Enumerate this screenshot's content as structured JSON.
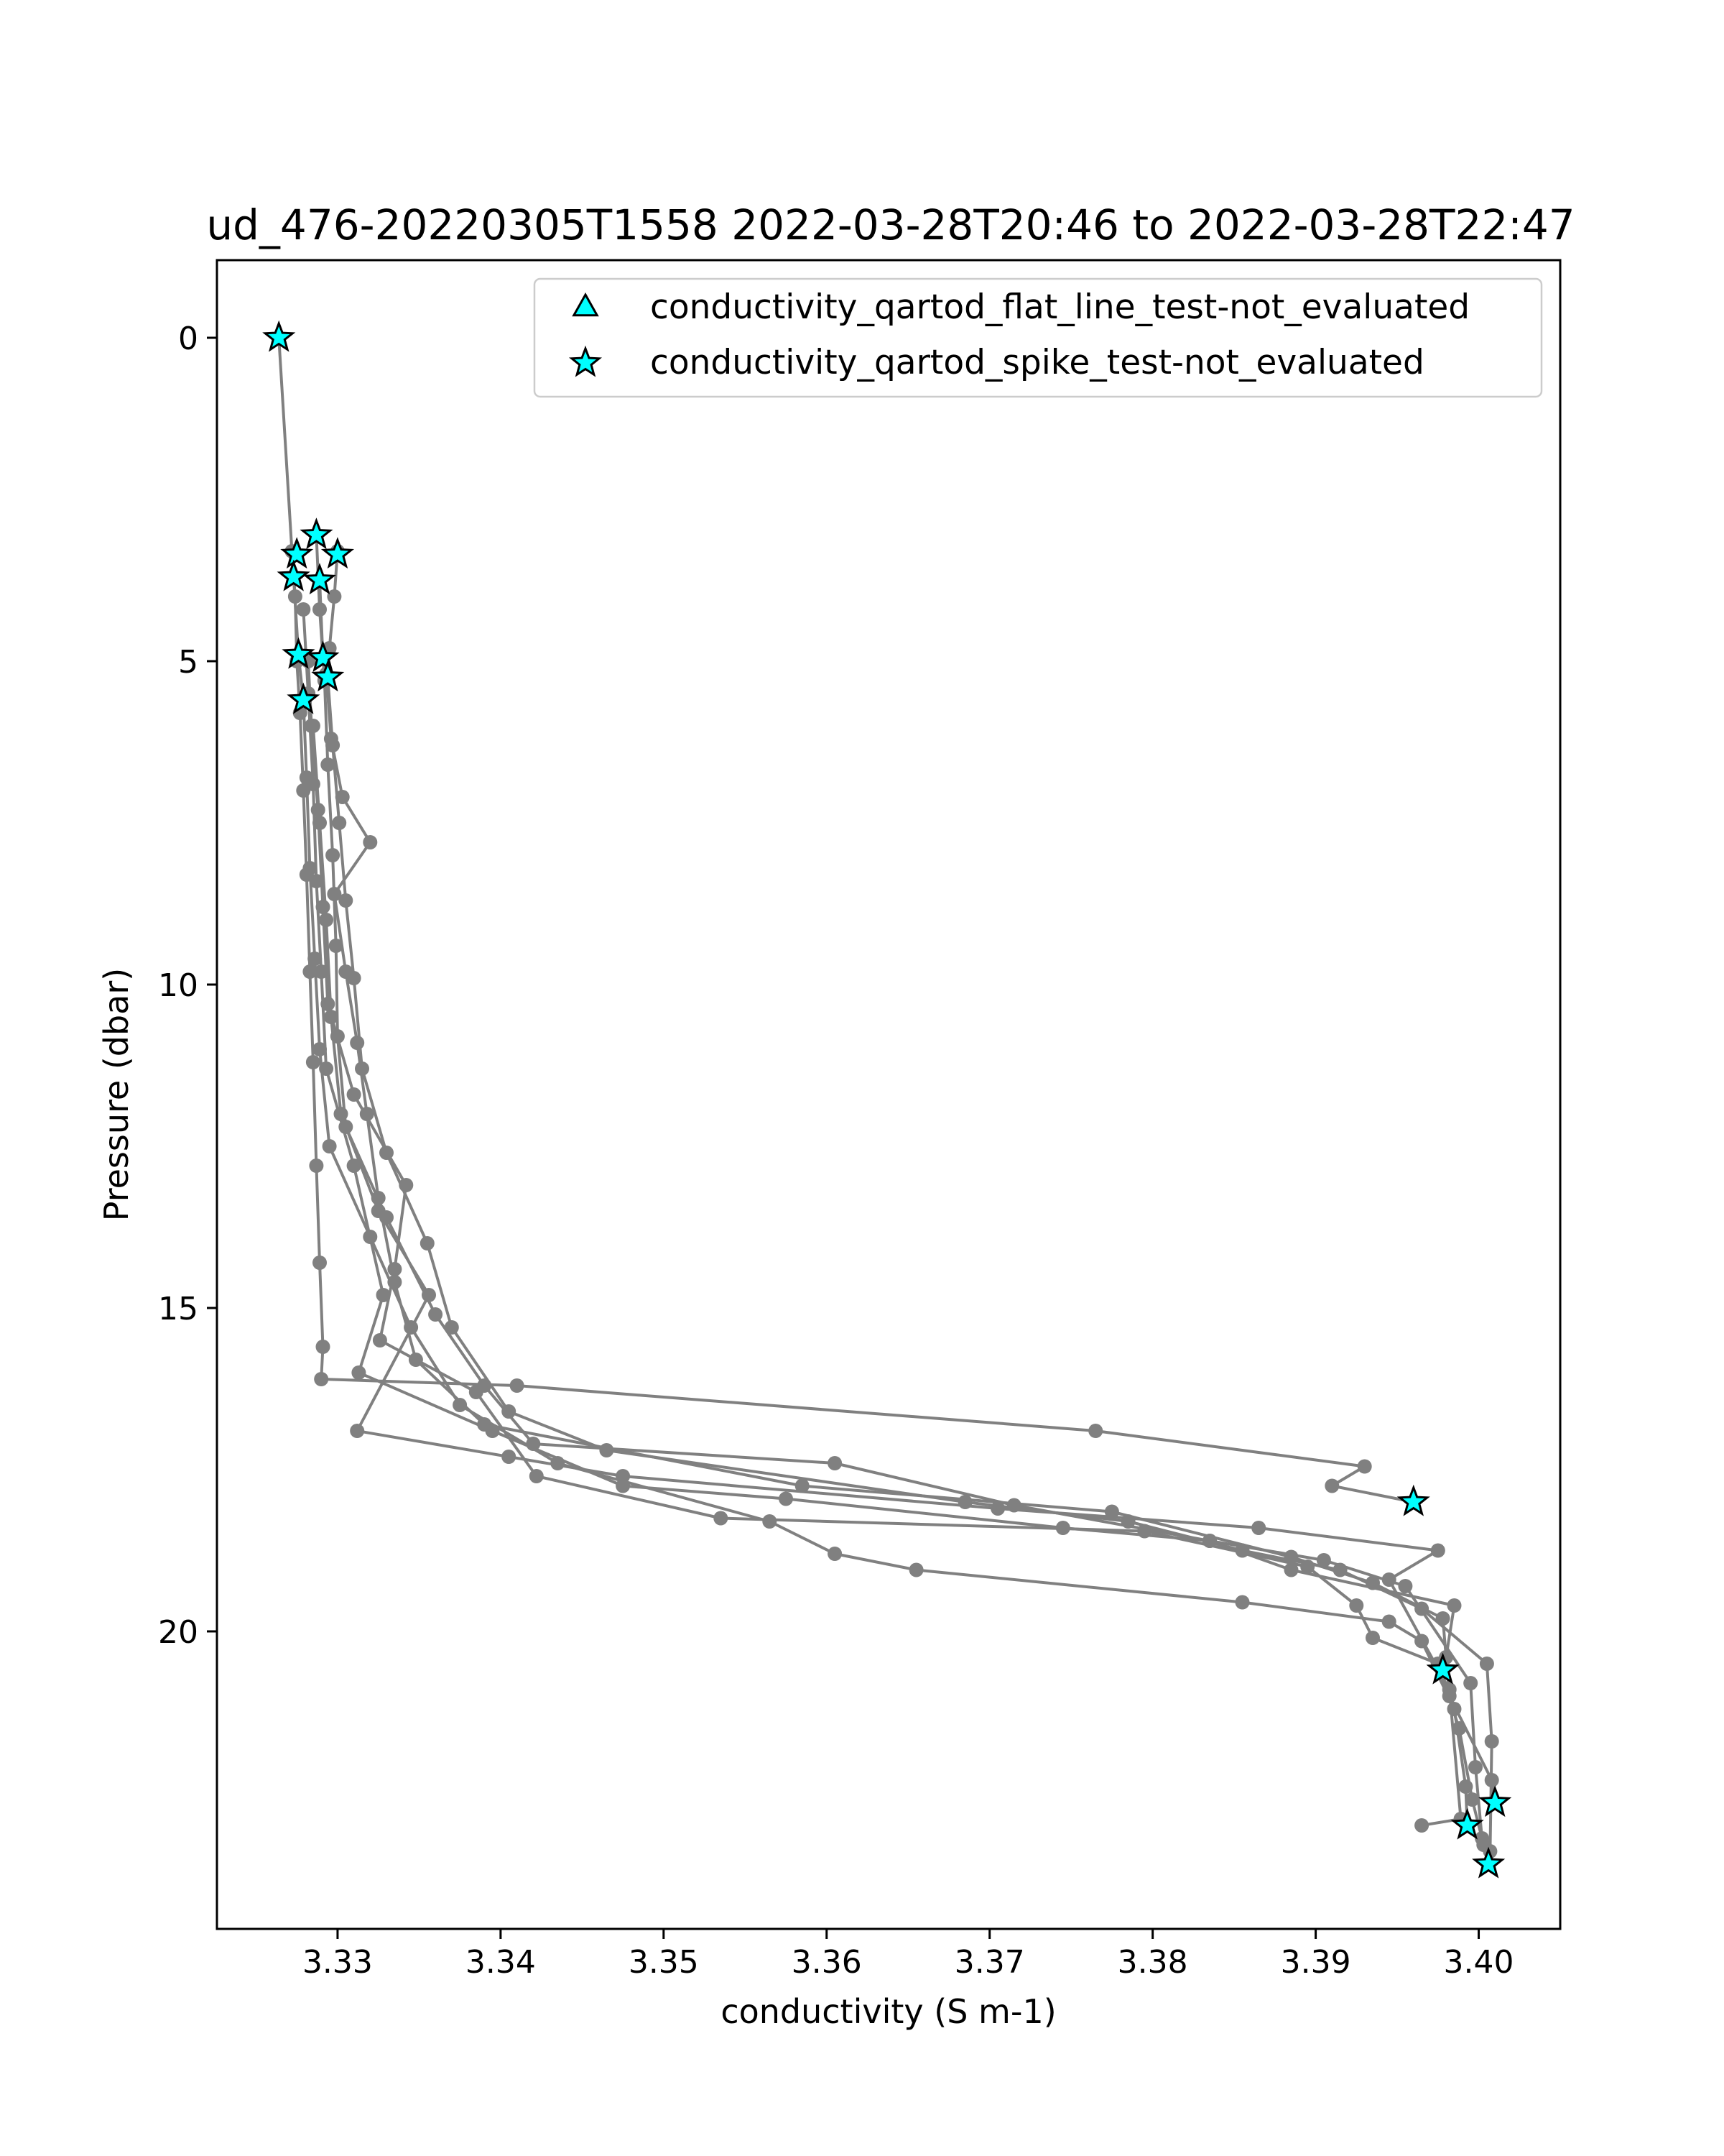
{
  "chart_data": {
    "type": "scatter",
    "title": "ud_476-20220305T1558 2022-03-28T20:46 to 2022-03-28T22:47",
    "xlabel": "conductivity (S m-1)",
    "ylabel": "Pressure (dbar)",
    "xlim": [
      3.3226,
      3.405
    ],
    "ylim": [
      24.6,
      -1.2
    ],
    "y_inverted": true,
    "grid": false,
    "legend_position": "upper-right",
    "x_ticks": [
      {
        "value": 3.33,
        "label": "3.33"
      },
      {
        "value": 3.34,
        "label": "3.34"
      },
      {
        "value": 3.35,
        "label": "3.35"
      },
      {
        "value": 3.36,
        "label": "3.36"
      },
      {
        "value": 3.37,
        "label": "3.37"
      },
      {
        "value": 3.38,
        "label": "3.38"
      },
      {
        "value": 3.39,
        "label": "3.39"
      },
      {
        "value": 3.4,
        "label": "3.40"
      }
    ],
    "y_ticks": [
      {
        "value": 0,
        "label": "0"
      },
      {
        "value": 5,
        "label": "5"
      },
      {
        "value": 10,
        "label": "10"
      },
      {
        "value": 15,
        "label": "15"
      },
      {
        "value": 20,
        "label": "20"
      }
    ],
    "profile_color": "#808080",
    "marker_fill": "#00ffff",
    "marker_edge": "#000000",
    "profiles": [
      {
        "points": [
          [
            3.3264,
            0.0
          ],
          [
            3.3272,
            3.3
          ],
          [
            3.3274,
            4.0
          ],
          [
            3.3275,
            5.0
          ],
          [
            3.3277,
            5.8
          ],
          [
            3.3279,
            7.0
          ],
          [
            3.3281,
            8.3
          ],
          [
            3.3283,
            9.8
          ],
          [
            3.3285,
            11.2
          ],
          [
            3.3287,
            12.8
          ],
          [
            3.3289,
            14.3
          ],
          [
            3.3291,
            15.6
          ],
          [
            3.329,
            16.1
          ],
          [
            3.341,
            16.2
          ],
          [
            3.3765,
            16.9
          ],
          [
            3.393,
            17.45
          ],
          [
            3.391,
            17.75
          ],
          [
            3.396,
            18.0
          ]
        ]
      },
      {
        "points": [
          [
            3.3287,
            3.05
          ],
          [
            3.3289,
            4.2
          ],
          [
            3.3292,
            5.3
          ],
          [
            3.3294,
            6.6
          ],
          [
            3.3297,
            8.0
          ],
          [
            3.3299,
            9.4
          ],
          [
            3.33,
            10.8
          ],
          [
            3.3305,
            12.2
          ],
          [
            3.333,
            13.6
          ],
          [
            3.336,
            15.1
          ],
          [
            3.339,
            16.2
          ],
          [
            3.342,
            17.1
          ],
          [
            3.3605,
            17.4
          ],
          [
            3.3715,
            18.05
          ],
          [
            3.3835,
            18.6
          ],
          [
            3.3885,
            19.05
          ],
          [
            3.3985,
            19.6
          ],
          [
            3.398,
            20.4
          ],
          [
            3.3978,
            20.6
          ]
        ]
      },
      {
        "points": [
          [
            3.33,
            3.3
          ],
          [
            3.3298,
            4.0
          ],
          [
            3.3295,
            4.8
          ],
          [
            3.3293,
            5.2
          ],
          [
            3.3296,
            6.2
          ],
          [
            3.3303,
            7.1
          ],
          [
            3.332,
            7.8
          ],
          [
            3.3298,
            8.6
          ],
          [
            3.3305,
            9.8
          ],
          [
            3.3312,
            10.9
          ],
          [
            3.3318,
            12.0
          ],
          [
            3.3325,
            13.3
          ],
          [
            3.3335,
            14.6
          ],
          [
            3.3348,
            15.8
          ],
          [
            3.339,
            16.8
          ],
          [
            3.3585,
            17.75
          ],
          [
            3.3775,
            18.15
          ],
          [
            3.3885,
            18.85
          ],
          [
            3.3935,
            19.25
          ],
          [
            3.3978,
            19.8
          ],
          [
            3.3982,
            21.0
          ],
          [
            3.4008,
            22.3
          ],
          [
            3.401,
            22.65
          ]
        ]
      },
      {
        "points": [
          [
            3.3273,
            3.7
          ],
          [
            3.3276,
            4.9
          ],
          [
            3.3279,
            5.6
          ],
          [
            3.3281,
            6.8
          ],
          [
            3.3283,
            8.2
          ],
          [
            3.3286,
            9.6
          ],
          [
            3.3289,
            11.0
          ],
          [
            3.3295,
            12.5
          ],
          [
            3.332,
            13.9
          ],
          [
            3.3345,
            15.3
          ],
          [
            3.3375,
            16.5
          ],
          [
            3.3435,
            17.4
          ],
          [
            3.3565,
            18.3
          ],
          [
            3.3605,
            18.8
          ],
          [
            3.3655,
            19.05
          ],
          [
            3.3855,
            19.55
          ],
          [
            3.3945,
            19.85
          ],
          [
            3.3965,
            20.15
          ],
          [
            3.3985,
            21.2
          ],
          [
            3.3992,
            22.4
          ],
          [
            3.3993,
            23.0
          ]
        ]
      },
      {
        "points": [
          [
            3.3289,
            3.75
          ],
          [
            3.3291,
            4.95
          ],
          [
            3.3294,
            5.25
          ],
          [
            3.3297,
            6.3
          ],
          [
            3.3301,
            7.5
          ],
          [
            3.3305,
            8.7
          ],
          [
            3.331,
            9.9
          ],
          [
            3.3315,
            11.3
          ],
          [
            3.333,
            12.6
          ],
          [
            3.3355,
            14.0
          ],
          [
            3.337,
            15.3
          ],
          [
            3.3405,
            16.6
          ],
          [
            3.3465,
            17.2
          ],
          [
            3.3685,
            18.0
          ],
          [
            3.3785,
            18.3
          ],
          [
            3.3855,
            18.75
          ],
          [
            3.3915,
            19.05
          ],
          [
            3.3965,
            19.65
          ],
          [
            3.4005,
            20.5
          ],
          [
            3.4008,
            21.7
          ],
          [
            3.4007,
            23.4
          ],
          [
            3.4006,
            23.6
          ]
        ]
      },
      {
        "points": [
          [
            3.3279,
            4.2
          ],
          [
            3.3282,
            5.5
          ],
          [
            3.3285,
            6.9
          ],
          [
            3.3287,
            8.4
          ],
          [
            3.329,
            9.8
          ],
          [
            3.3293,
            11.3
          ],
          [
            3.331,
            12.8
          ],
          [
            3.3328,
            14.8
          ],
          [
            3.3313,
            16.0
          ],
          [
            3.3395,
            16.9
          ],
          [
            3.3475,
            17.75
          ],
          [
            3.3575,
            17.95
          ],
          [
            3.3745,
            18.4
          ],
          [
            3.3835,
            18.6
          ],
          [
            3.3905,
            18.9
          ],
          [
            3.3955,
            19.3
          ],
          [
            3.3995,
            20.8
          ],
          [
            3.3998,
            22.1
          ],
          [
            3.4002,
            23.2
          ]
        ]
      },
      {
        "points": [
          [
            3.3282,
            5.0
          ],
          [
            3.3284,
            6.0
          ],
          [
            3.3288,
            7.3
          ],
          [
            3.3291,
            8.8
          ],
          [
            3.3294,
            10.3
          ],
          [
            3.331,
            11.7
          ],
          [
            3.3342,
            13.1
          ],
          [
            3.3335,
            14.4
          ],
          [
            3.3326,
            15.5
          ],
          [
            3.3385,
            16.3
          ],
          [
            3.3422,
            17.6
          ],
          [
            3.3535,
            18.25
          ],
          [
            3.3795,
            18.45
          ],
          [
            3.3895,
            19.0
          ],
          [
            3.3925,
            19.6
          ],
          [
            3.3935,
            20.1
          ],
          [
            3.3975,
            20.5
          ],
          [
            3.3988,
            21.5
          ],
          [
            3.3996,
            22.6
          ],
          [
            3.4003,
            23.3
          ]
        ]
      },
      {
        "points": [
          [
            3.3285,
            6.0
          ],
          [
            3.3289,
            7.5
          ],
          [
            3.3293,
            9.0
          ],
          [
            3.3296,
            10.5
          ],
          [
            3.3302,
            12.0
          ],
          [
            3.3325,
            13.5
          ],
          [
            3.3356,
            14.8
          ],
          [
            3.3312,
            16.9
          ],
          [
            3.3405,
            17.3
          ],
          [
            3.3475,
            17.6
          ],
          [
            3.3705,
            18.1
          ],
          [
            3.3865,
            18.4
          ],
          [
            3.3975,
            18.75
          ],
          [
            3.3945,
            19.2
          ],
          [
            3.3982,
            20.9
          ],
          [
            3.3989,
            22.9
          ],
          [
            3.3965,
            23.0
          ]
        ]
      }
    ],
    "markers": {
      "flat_line_test": {
        "name": "conductivity_qartod_flat_line_test-not_evaluated",
        "shape": "triangle",
        "points": []
      },
      "spike_test": {
        "name": "conductivity_qartod_spike_test-not_evaluated",
        "shape": "star",
        "points": [
          [
            3.3264,
            0.0
          ],
          [
            3.3287,
            3.05
          ],
          [
            3.3275,
            3.35
          ],
          [
            3.33,
            3.35
          ],
          [
            3.3273,
            3.7
          ],
          [
            3.3289,
            3.75
          ],
          [
            3.3276,
            4.9
          ],
          [
            3.3291,
            4.95
          ],
          [
            3.3294,
            5.25
          ],
          [
            3.3279,
            5.6
          ],
          [
            3.396,
            18.0
          ],
          [
            3.3978,
            20.6
          ],
          [
            3.401,
            22.65
          ],
          [
            3.3993,
            23.0
          ],
          [
            3.4006,
            23.6
          ]
        ]
      }
    }
  }
}
